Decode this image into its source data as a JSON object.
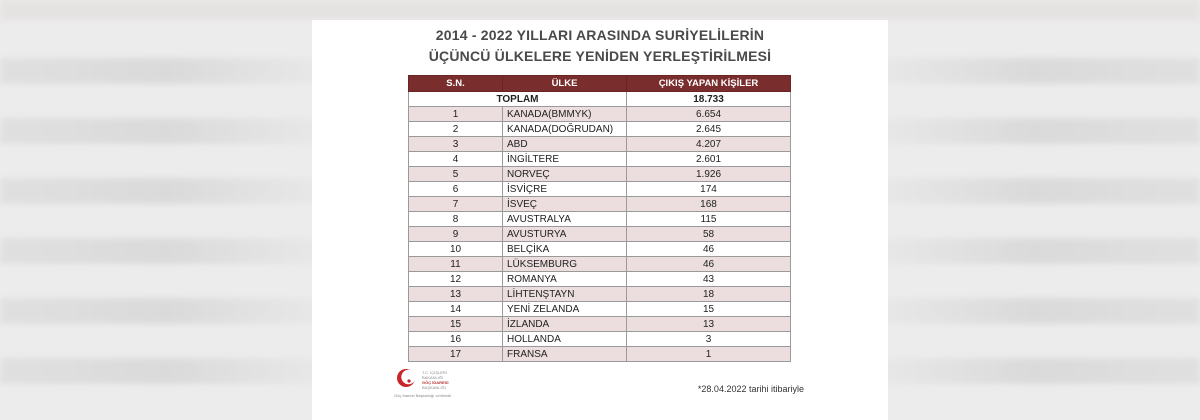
{
  "title_lines": [
    "2014 - 2022 YILLARI ARASINDA SURİYELİLERİN",
    "ÜÇÜNCÜ ÜLKELERE YENİDEN YERLEŞTİRİLMESİ"
  ],
  "table": {
    "headers": [
      "S.N.",
      "ÜLKE",
      "ÇIKIŞ YAPAN KİŞİLER"
    ],
    "total": {
      "label": "TOPLAM",
      "value": "18.733"
    },
    "rows": [
      {
        "sn": "1",
        "country": "KANADA(BMMYK)",
        "value": "6.654",
        "shade": true
      },
      {
        "sn": "2",
        "country": "KANADA(DOĞRUDAN)",
        "value": "2.645",
        "shade": false
      },
      {
        "sn": "3",
        "country": "ABD",
        "value": "4.207",
        "shade": true
      },
      {
        "sn": "4",
        "country": "İNGİLTERE",
        "value": "2.601",
        "shade": false
      },
      {
        "sn": "5",
        "country": "NORVEÇ",
        "value": "1.926",
        "shade": true
      },
      {
        "sn": "6",
        "country": "İSVİÇRE",
        "value": "174",
        "shade": false
      },
      {
        "sn": "7",
        "country": "İSVEÇ",
        "value": "168",
        "shade": true
      },
      {
        "sn": "8",
        "country": "AVUSTRALYA",
        "value": "115",
        "shade": false
      },
      {
        "sn": "9",
        "country": "AVUSTURYA",
        "value": "58",
        "shade": true
      },
      {
        "sn": "10",
        "country": "BELÇİKA",
        "value": "46",
        "shade": false
      },
      {
        "sn": "11",
        "country": "LÜKSEMBURG",
        "value": "46",
        "shade": true
      },
      {
        "sn": "12",
        "country": "ROMANYA",
        "value": "43",
        "shade": false
      },
      {
        "sn": "13",
        "country": "LİHTENŞTAYN",
        "value": "18",
        "shade": true
      },
      {
        "sn": "14",
        "country": "YENİ ZELANDA",
        "value": "15",
        "shade": false
      },
      {
        "sn": "15",
        "country": "İZLANDA",
        "value": "13",
        "shade": true
      },
      {
        "sn": "16",
        "country": "HOLLANDA",
        "value": "3",
        "shade": false
      },
      {
        "sn": "17",
        "country": "FRANSA",
        "value": "1",
        "shade": true
      }
    ]
  },
  "logo": {
    "icon": "crescent-icon",
    "text_lines": [
      "T.C. İÇİŞLERİ BAKANLIĞI",
      "GÖÇ İDARESİ",
      "BAŞKANLIĞI"
    ],
    "tagline": "Göç İdaresi Başkanlığı verileridir"
  },
  "footnote": "*28.04.2022 tarihi itibariyle",
  "colors": {
    "header_bg": "#7a2d2d",
    "row_shade": "#ecdede",
    "title_text": "#4a4a4a",
    "logo_red": "#c8252b"
  }
}
